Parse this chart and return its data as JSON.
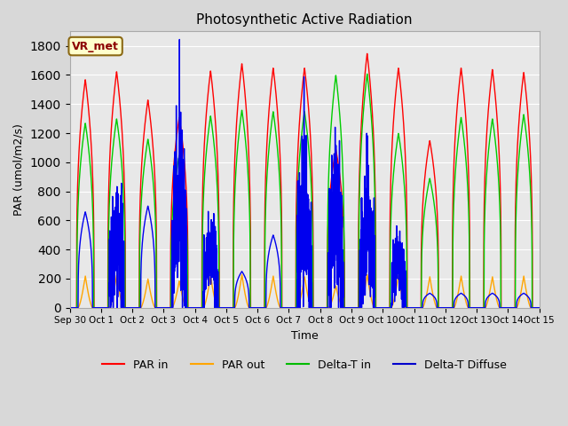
{
  "title": "Photosynthetic Active Radiation",
  "ylabel": "PAR (umol/m2/s)",
  "xlabel": "Time",
  "annotation": "VR_met",
  "ylim": [
    0,
    1900
  ],
  "yticks": [
    0,
    200,
    400,
    600,
    800,
    1000,
    1200,
    1400,
    1600,
    1800
  ],
  "fig_bg_color": "#d8d8d8",
  "plot_bg_color": "#e8e8e8",
  "legend_labels": [
    "PAR in",
    "PAR out",
    "Delta-T in",
    "Delta-T Diffuse"
  ],
  "legend_colors": [
    "#ff0000",
    "#ffa500",
    "#00bb00",
    "#0000cc"
  ],
  "line_colors": {
    "par_in": "#ff0000",
    "par_out": "#ffa500",
    "delta_t_in": "#00cc00",
    "delta_t_diffuse": "#0000ee"
  },
  "xtick_labels": [
    "Sep 30",
    "Oct 1",
    "Oct 2",
    "Oct 3",
    "Oct 4",
    "Oct 5",
    "Oct 6",
    "Oct 7",
    "Oct 8",
    "Oct 9",
    "Oct 10",
    "Oct 11",
    "Oct 12",
    "Oct 13",
    "Oct 14",
    "Oct 15"
  ],
  "n_days": 15,
  "peaks_par_in": [
    1570,
    1625,
    1430,
    1310,
    1630,
    1680,
    1650,
    1650,
    1090,
    1750,
    1650,
    1150,
    1650,
    1640,
    1620
  ],
  "peaks_par_out": [
    220,
    225,
    200,
    185,
    220,
    230,
    220,
    215,
    150,
    230,
    225,
    215,
    220,
    215,
    220
  ],
  "peaks_delta_in": [
    1270,
    1300,
    1160,
    1050,
    1320,
    1360,
    1350,
    1350,
    1600,
    1610,
    1200,
    890,
    1310,
    1300,
    1330
  ],
  "peaks_delta_dif": [
    660,
    520,
    700,
    730,
    390,
    250,
    500,
    720,
    640,
    590,
    295,
    100,
    100,
    100,
    100
  ],
  "noise_days_dif": [
    1,
    3,
    4,
    7,
    8,
    9,
    10
  ],
  "figsize": [
    6.4,
    4.8
  ],
  "dpi": 100
}
